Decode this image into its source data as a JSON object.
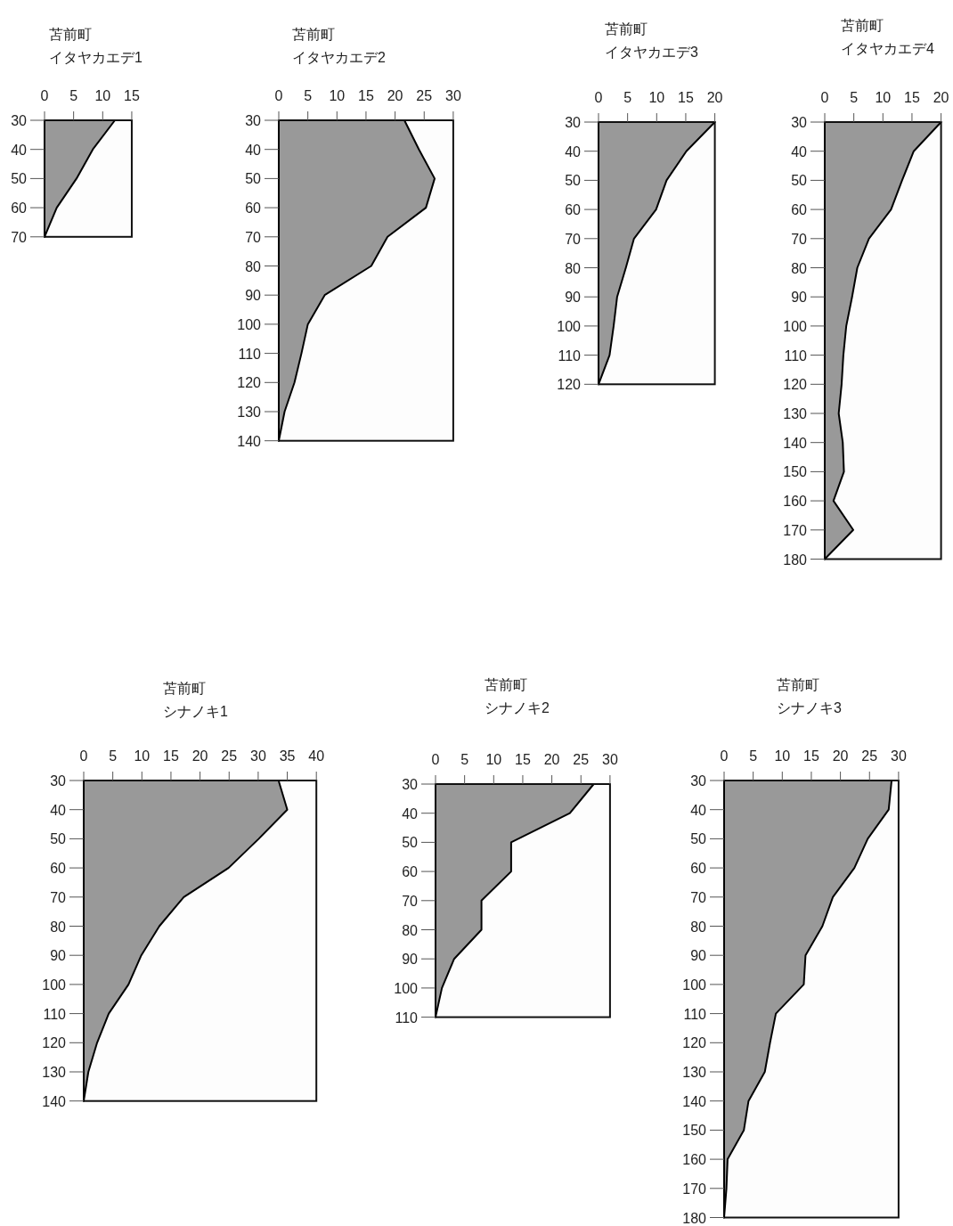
{
  "chart_data": [
    {
      "type": "area",
      "orientation": "horizontal",
      "title": "苫前町",
      "subtitle": "イタヤカエデ1",
      "categories": [
        "30",
        "40",
        "50",
        "60",
        "70"
      ],
      "values": [
        12.1,
        8.3,
        5.5,
        2.1,
        0
      ],
      "color": "#999999",
      "xlim": [
        0,
        15
      ],
      "xticks": [
        0,
        5,
        10,
        15
      ],
      "grid": false
    },
    {
      "type": "area",
      "orientation": "horizontal",
      "title": "苫前町",
      "subtitle": "イタヤカエデ2",
      "categories": [
        "30",
        "40",
        "50",
        "60",
        "70",
        "80",
        "90",
        "100",
        "110",
        "120",
        "130",
        "140"
      ],
      "values": [
        21.6,
        24.1,
        26.8,
        25.3,
        18.7,
        15.9,
        7.9,
        5,
        3.9,
        2.7,
        1,
        0
      ],
      "color": "#999999",
      "xlim": [
        0,
        30
      ],
      "xticks": [
        0,
        5,
        10,
        15,
        20,
        25,
        30
      ],
      "grid": false
    },
    {
      "type": "area",
      "orientation": "horizontal",
      "title": "苫前町",
      "subtitle": "イタヤカエデ3",
      "categories": [
        "30",
        "40",
        "50",
        "60",
        "70",
        "80",
        "90",
        "100",
        "110",
        "120"
      ],
      "values": [
        20,
        15.1,
        11.7,
        9.9,
        6.1,
        4.7,
        3.2,
        2.6,
        1.9,
        0
      ],
      "color": "#999999",
      "xlim": [
        0,
        20
      ],
      "xticks": [
        0,
        5,
        10,
        15,
        20
      ],
      "grid": false
    },
    {
      "type": "area",
      "orientation": "horizontal",
      "title": "苫前町",
      "subtitle": "イタヤカエデ4",
      "categories": [
        "30",
        "40",
        "50",
        "60",
        "70",
        "80",
        "90",
        "100",
        "110",
        "120",
        "130",
        "140",
        "150",
        "160",
        "170",
        "180"
      ],
      "values": [
        20,
        15.3,
        13.3,
        11.4,
        7.6,
        5.6,
        4.7,
        3.7,
        3.2,
        2.9,
        2.4,
        3.1,
        3.3,
        1.5,
        4.9,
        0
      ],
      "color": "#999999",
      "xlim": [
        0,
        20
      ],
      "xticks": [
        0,
        5,
        10,
        15,
        20
      ],
      "grid": false
    },
    {
      "type": "area",
      "orientation": "horizontal",
      "title": "苫前町",
      "subtitle": "シナノキ1",
      "categories": [
        "30",
        "40",
        "50",
        "60",
        "70",
        "80",
        "90",
        "100",
        "110",
        "120",
        "130",
        "140"
      ],
      "values": [
        33.5,
        35,
        30.1,
        24.9,
        17.2,
        13,
        9.9,
        7.7,
        4.3,
        2.3,
        0.8,
        0
      ],
      "color": "#999999",
      "xlim": [
        0,
        40
      ],
      "xticks": [
        0,
        5,
        10,
        15,
        20,
        25,
        30,
        35,
        40
      ],
      "grid": false
    },
    {
      "type": "area",
      "orientation": "horizontal",
      "title": "苫前町",
      "subtitle": "シナノキ2",
      "categories": [
        "30",
        "40",
        "50",
        "60",
        "70",
        "80",
        "90",
        "100",
        "110"
      ],
      "values": [
        27.2,
        23.1,
        13,
        13,
        7.9,
        7.9,
        3.2,
        1.1,
        0
      ],
      "color": "#999999",
      "xlim": [
        0,
        30
      ],
      "xticks": [
        0,
        5,
        10,
        15,
        20,
        25,
        30
      ],
      "grid": false
    },
    {
      "type": "area",
      "orientation": "horizontal",
      "title": "苫前町",
      "subtitle": "シナノキ3",
      "categories": [
        "30",
        "40",
        "50",
        "60",
        "70",
        "80",
        "90",
        "100",
        "110",
        "120",
        "130",
        "140",
        "150",
        "160",
        "170",
        "180"
      ],
      "values": [
        28.8,
        28.3,
        24.7,
        22.4,
        18.7,
        16.9,
        14,
        13.7,
        8.9,
        7.9,
        7,
        4.2,
        3.4,
        0.6,
        0.4,
        0
      ],
      "color": "#999999",
      "xlim": [
        0,
        30
      ],
      "xticks": [
        0,
        5,
        10,
        15,
        20,
        25,
        30
      ],
      "grid": false
    }
  ]
}
